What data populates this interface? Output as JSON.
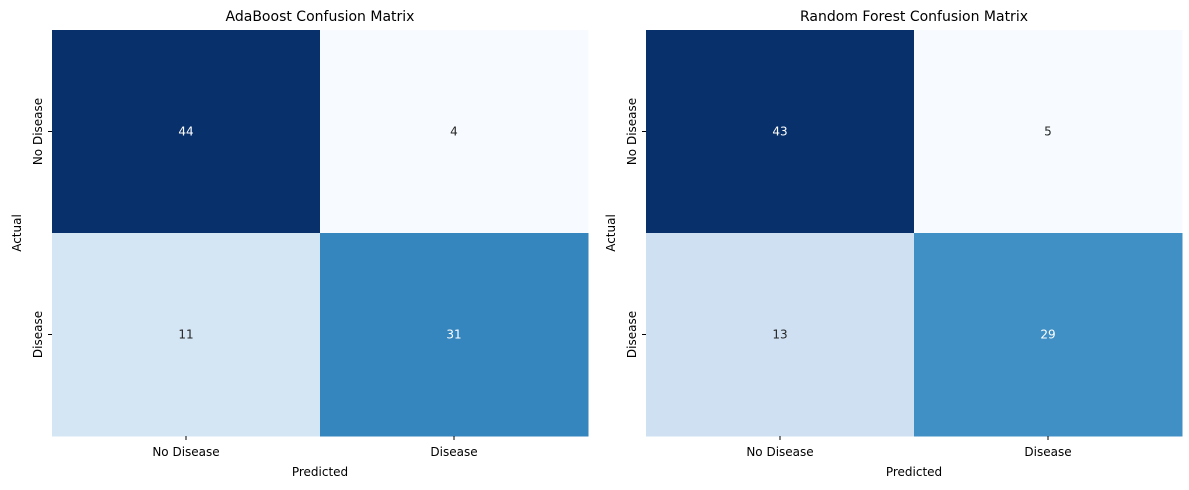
{
  "chart_data": [
    {
      "type": "heatmap",
      "title": "AdaBoost Confusion Matrix",
      "xlabel": "Predicted",
      "ylabel": "Actual",
      "x_categories": [
        "No Disease",
        "Disease"
      ],
      "y_categories": [
        "No Disease",
        "Disease"
      ],
      "values": [
        [
          44,
          4
        ],
        [
          11,
          31
        ]
      ],
      "colormap": "Blues",
      "colorbar": false
    },
    {
      "type": "heatmap",
      "title": "Random Forest Confusion Matrix",
      "xlabel": "Predicted",
      "ylabel": "Actual",
      "x_categories": [
        "No Disease",
        "Disease"
      ],
      "y_categories": [
        "No Disease",
        "Disease"
      ],
      "values": [
        [
          43,
          5
        ],
        [
          13,
          29
        ]
      ],
      "colormap": "Blues",
      "colorbar": false
    }
  ]
}
